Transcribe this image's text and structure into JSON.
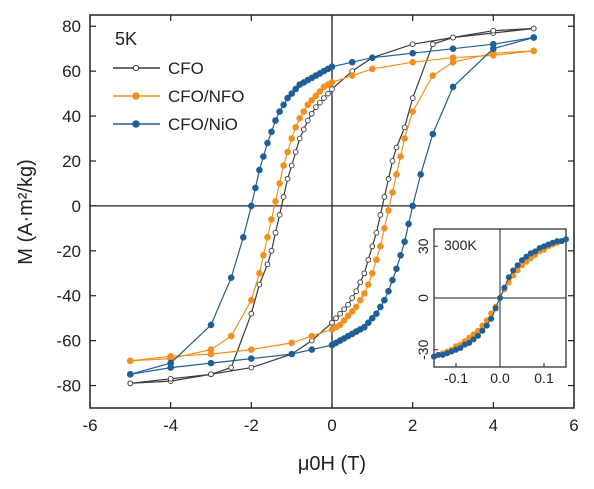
{
  "chart_data": {
    "type": "line",
    "ylabel": "M (A·m²/kg)",
    "xlabel": "μ0H (T)",
    "xlim": [
      -6,
      6
    ],
    "ylim": [
      -90,
      85
    ],
    "x_ticks": [
      -6,
      -4,
      -2,
      0,
      2,
      4,
      6
    ],
    "y_ticks": [
      -80,
      -60,
      -40,
      -20,
      0,
      20,
      40,
      60,
      80
    ],
    "temperature_label": "5K",
    "legend_position": "top-left",
    "series": [
      {
        "name": "CFO",
        "color": "#3a3a3a",
        "marker": "open-circle",
        "upper_branch": {
          "x": [
            -5,
            -4,
            -3,
            -2.5,
            -2,
            -1.8,
            -1.6,
            -1.5,
            -1.4,
            -1.3,
            -1.2,
            -1.1,
            -1.0,
            -0.9,
            -0.8,
            -0.7,
            -0.6,
            -0.5,
            -0.4,
            -0.3,
            -0.2,
            -0.1,
            0,
            0.5,
            1,
            2,
            3,
            4,
            5
          ],
          "y": [
            -79,
            -78,
            -75,
            -72,
            -48,
            -35,
            -26,
            -20,
            -12,
            -4,
            4,
            12,
            18,
            24,
            30,
            34,
            38,
            41,
            44,
            46,
            48,
            50,
            52,
            60,
            66,
            72,
            75,
            77,
            79
          ]
        },
        "lower_branch": {
          "x": [
            5,
            4,
            3,
            2.5,
            2,
            1.8,
            1.6,
            1.5,
            1.4,
            1.3,
            1.2,
            1.1,
            1.0,
            0.9,
            0.8,
            0.7,
            0.6,
            0.5,
            0.4,
            0.3,
            0.2,
            0.1,
            0,
            -0.5,
            -1,
            -2,
            -3,
            -4,
            -5
          ],
          "y": [
            79,
            78,
            75,
            72,
            48,
            35,
            26,
            20,
            12,
            4,
            -4,
            -12,
            -18,
            -24,
            -30,
            -34,
            -38,
            -41,
            -44,
            -46,
            -48,
            -50,
            -52,
            -60,
            -66,
            -72,
            -75,
            -77,
            -79
          ]
        }
      },
      {
        "name": "CFO/NFO",
        "color": "#f0901e",
        "marker": "filled-circle",
        "upper_branch": {
          "x": [
            -5,
            -4,
            -3,
            -2.5,
            -2,
            -1.8,
            -1.7,
            -1.6,
            -1.5,
            -1.4,
            -1.3,
            -1.2,
            -1.1,
            -1.0,
            -0.9,
            -0.8,
            -0.7,
            -0.6,
            -0.5,
            -0.4,
            -0.3,
            -0.2,
            -0.1,
            0,
            0.5,
            1,
            2,
            3,
            4,
            5
          ],
          "y": [
            -69,
            -68,
            -64,
            -58,
            -42,
            -30,
            -22,
            -14,
            -6,
            2,
            10,
            18,
            24,
            30,
            35,
            39,
            42,
            45,
            47,
            49,
            51,
            53,
            54,
            55,
            58,
            61,
            64,
            66,
            67,
            69
          ]
        },
        "lower_branch": {
          "x": [
            5,
            4,
            3,
            2.5,
            2,
            1.8,
            1.7,
            1.6,
            1.5,
            1.4,
            1.3,
            1.2,
            1.1,
            1.0,
            0.9,
            0.8,
            0.7,
            0.6,
            0.5,
            0.4,
            0.3,
            0.2,
            0.1,
            0,
            -0.5,
            -1,
            -2,
            -3,
            -4,
            -5
          ],
          "y": [
            69,
            68,
            64,
            58,
            42,
            30,
            22,
            14,
            6,
            -2,
            -10,
            -18,
            -24,
            -30,
            -35,
            -39,
            -42,
            -45,
            -47,
            -49,
            -51,
            -53,
            -54,
            -55,
            -58,
            -61,
            -64,
            -66,
            -67,
            -69
          ]
        }
      },
      {
        "name": "CFO/NiO",
        "color": "#1f5f96",
        "marker": "filled-circle",
        "upper_branch": {
          "x": [
            -5,
            -4,
            -3,
            -2.5,
            -2.2,
            -2.0,
            -1.9,
            -1.8,
            -1.7,
            -1.6,
            -1.5,
            -1.4,
            -1.3,
            -1.2,
            -1.1,
            -1.0,
            -0.9,
            -0.8,
            -0.7,
            -0.6,
            -0.5,
            -0.4,
            -0.3,
            -0.2,
            -0.1,
            0,
            0.5,
            1,
            2,
            3,
            4,
            5
          ],
          "y": [
            -75,
            -70,
            -53,
            -32,
            -14,
            0,
            8,
            16,
            22,
            28,
            33,
            38,
            42,
            45,
            48,
            50,
            52,
            54,
            55,
            56,
            57,
            58,
            59,
            60,
            61,
            62,
            64,
            66,
            68,
            70,
            72,
            75
          ]
        },
        "lower_branch": {
          "x": [
            5,
            4,
            3,
            2.5,
            2.2,
            2.0,
            1.9,
            1.8,
            1.7,
            1.6,
            1.5,
            1.4,
            1.3,
            1.2,
            1.1,
            1.0,
            0.9,
            0.8,
            0.7,
            0.6,
            0.5,
            0.4,
            0.3,
            0.2,
            0.1,
            0,
            -0.5,
            -1,
            -2,
            -3,
            -4,
            -5
          ],
          "y": [
            75,
            70,
            53,
            32,
            14,
            0,
            -8,
            -16,
            -22,
            -28,
            -33,
            -38,
            -42,
            -45,
            -48,
            -50,
            -52,
            -54,
            -55,
            -56,
            -57,
            -58,
            -59,
            -60,
            -61,
            -62,
            -64,
            -66,
            -68,
            -70,
            -72,
            -75
          ]
        }
      }
    ],
    "inset": {
      "label": "300K",
      "xlim": [
        -0.15,
        0.15
      ],
      "ylim": [
        -40,
        40
      ],
      "x_ticks": [
        -0.1,
        0.0,
        0.1
      ],
      "x_tick_labels": [
        "-0.1",
        "0.0",
        "0.1"
      ],
      "y_ticks": [
        -30,
        0,
        30
      ],
      "y_tick_labels": [
        "-30",
        "0",
        "30"
      ],
      "series": [
        {
          "name": "CFO/NFO",
          "color": "#f0901e",
          "x": [
            -0.15,
            -0.14,
            -0.13,
            -0.12,
            -0.11,
            -0.1,
            -0.09,
            -0.08,
            -0.07,
            -0.06,
            -0.05,
            -0.04,
            -0.03,
            -0.02,
            -0.01,
            0.0,
            0.01,
            0.02,
            0.03,
            0.04,
            0.05,
            0.06,
            0.07,
            0.08,
            0.09,
            0.1,
            0.11,
            0.12,
            0.13,
            0.14
          ],
          "y": [
            -34,
            -33,
            -32,
            -31,
            -30,
            -28,
            -27,
            -25,
            -23,
            -21,
            -19,
            -16,
            -13,
            -9,
            -5,
            0,
            5,
            9,
            13,
            16,
            19,
            21,
            23,
            25,
            27,
            28,
            30,
            31,
            32,
            33
          ]
        },
        {
          "name": "CFO/NiO",
          "color": "#1f5f96",
          "x": [
            -0.15,
            -0.14,
            -0.13,
            -0.12,
            -0.11,
            -0.1,
            -0.09,
            -0.08,
            -0.07,
            -0.06,
            -0.05,
            -0.04,
            -0.03,
            -0.02,
            -0.01,
            0.0,
            0.01,
            0.02,
            0.03,
            0.04,
            0.05,
            0.06,
            0.07,
            0.08,
            0.09,
            0.1,
            0.11,
            0.12,
            0.13,
            0.14,
            0.15
          ],
          "y": [
            -34,
            -33,
            -33,
            -32,
            -31,
            -30,
            -29,
            -27,
            -26,
            -24,
            -22,
            -19,
            -16,
            -12,
            -6,
            0,
            6,
            12,
            16,
            19,
            22,
            24,
            26,
            27,
            29,
            30,
            31,
            32,
            33,
            33,
            34
          ]
        }
      ]
    }
  }
}
